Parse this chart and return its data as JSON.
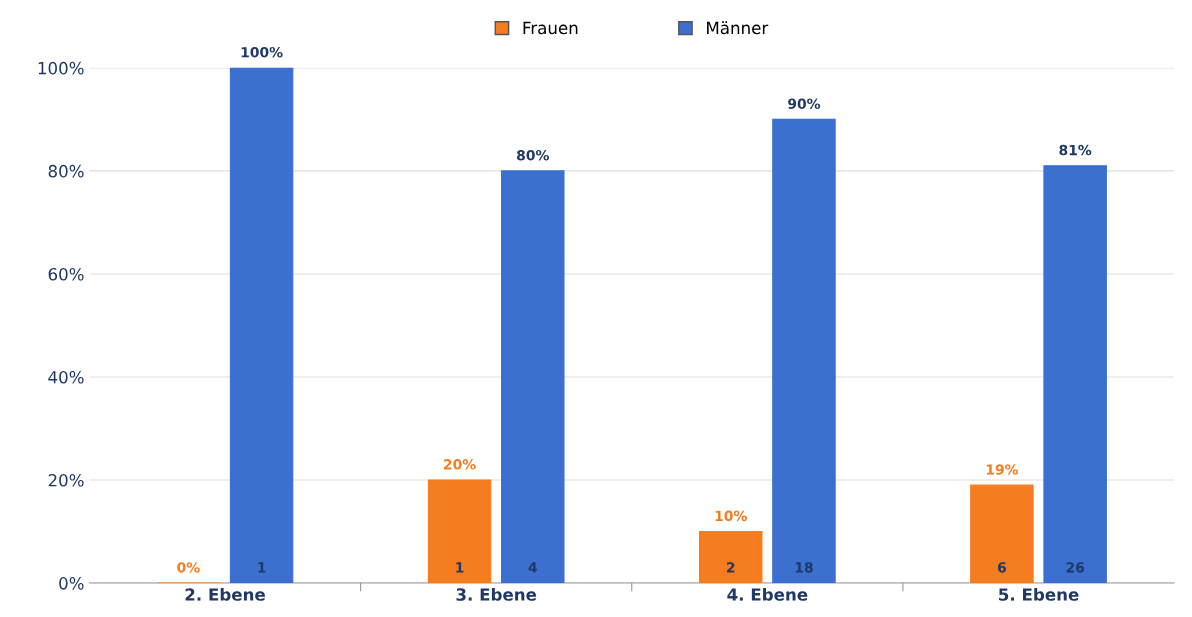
{
  "chart_data": {
    "type": "bar",
    "categories": [
      "2. Ebene",
      "3. Ebene",
      "4. Ebene",
      "5. Ebene"
    ],
    "series": [
      {
        "name": "Frauen",
        "color": "#f57c1f",
        "values": [
          0,
          20,
          10,
          19
        ],
        "value_labels": [
          "0%",
          "20%",
          "10%",
          "19%"
        ]
      },
      {
        "name": "Männer",
        "color": "#3b6fd0",
        "values": [
          100,
          80,
          90,
          81
        ],
        "value_labels": [
          "100%",
          "80%",
          "90%",
          "81%"
        ]
      }
    ],
    "annotations": [
      "1",
      "1",
      "4",
      "2",
      "18",
      "6",
      "26"
    ],
    "ylim": [
      0,
      100
    ],
    "yticks": [
      {
        "value": 0,
        "label": "0%"
      },
      {
        "value": 20,
        "label": "20%"
      },
      {
        "value": 40,
        "label": "40%"
      },
      {
        "value": 60,
        "label": "60%"
      },
      {
        "value": 80,
        "label": "80%"
      },
      {
        "value": 100,
        "label": "100%"
      }
    ],
    "grid": "y",
    "legend": "top"
  }
}
